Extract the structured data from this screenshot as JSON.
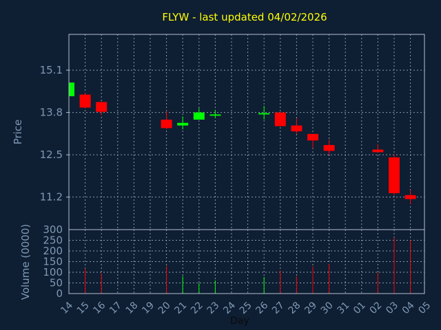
{
  "colors": {
    "background": "#0e1e33",
    "title": "#ffff00",
    "axis_text": "#7f9ab4",
    "grid": "#8d9dad",
    "frame": "#b6c2cf",
    "up": "#00ff00",
    "down": "#ff0000"
  },
  "chart_data": [
    {
      "type": "candlestick",
      "title": "FLYW - last updated 04/02/2026",
      "ylabel": "Price",
      "xlabel": "",
      "ylim": [
        10.2,
        16.2
      ],
      "yticks": [
        15.1,
        13.8,
        12.5,
        11.2
      ],
      "ytick_labels": [
        "15.1",
        "13.8",
        "12.5",
        "11.2"
      ],
      "grid": true,
      "x_day_labels": [
        "14",
        "15",
        "16",
        "17",
        "18",
        "19",
        "20",
        "21",
        "22",
        "23",
        "24",
        "25",
        "26",
        "27",
        "28",
        "29",
        "30",
        "31",
        "01",
        "02",
        "03",
        "04",
        "05"
      ],
      "candles": [
        {
          "day": 0,
          "open": 14.3,
          "close": 14.72,
          "high": 14.72,
          "low": 14.3
        },
        {
          "day": 1,
          "open": 14.35,
          "close": 13.95,
          "high": 14.4,
          "low": 13.92
        },
        {
          "day": 2,
          "open": 14.12,
          "close": 13.82,
          "high": 14.14,
          "low": 13.72
        },
        {
          "day": 6,
          "open": 13.58,
          "close": 13.32,
          "high": 13.84,
          "low": 13.28
        },
        {
          "day": 7,
          "open": 13.4,
          "close": 13.48,
          "high": 13.68,
          "low": 13.28
        },
        {
          "day": 8,
          "open": 13.58,
          "close": 13.8,
          "high": 13.94,
          "low": 13.58
        },
        {
          "day": 9,
          "open": 13.7,
          "close": 13.74,
          "high": 13.88,
          "low": 13.62
        },
        {
          "day": 12,
          "open": 13.74,
          "close": 13.78,
          "high": 14.0,
          "low": 13.58
        },
        {
          "day": 13,
          "open": 13.8,
          "close": 13.38,
          "high": 13.8,
          "low": 13.38
        },
        {
          "day": 14,
          "open": 13.4,
          "close": 13.22,
          "high": 13.62,
          "low": 13.14
        },
        {
          "day": 15,
          "open": 13.14,
          "close": 12.94,
          "high": 13.14,
          "low": 12.7
        },
        {
          "day": 16,
          "open": 12.8,
          "close": 12.62,
          "high": 12.96,
          "low": 12.5
        },
        {
          "day": 19,
          "open": 12.66,
          "close": 12.58,
          "high": 12.82,
          "low": 12.56
        },
        {
          "day": 20,
          "open": 12.42,
          "close": 11.32,
          "high": 12.52,
          "low": 11.26
        },
        {
          "day": 21,
          "open": 11.26,
          "close": 11.14,
          "high": 11.42,
          "low": 10.98
        }
      ]
    },
    {
      "type": "bar",
      "ylabel": "Volume (0000)",
      "xlabel": "Day",
      "ylim": [
        0,
        300
      ],
      "yticks": [
        0,
        50,
        100,
        150,
        200,
        250,
        300
      ],
      "ytick_labels": [
        "0",
        "50",
        "100",
        "150",
        "200",
        "250",
        "300"
      ],
      "grid": true,
      "bars": [
        {
          "day": 1,
          "value": 118,
          "color": "down"
        },
        {
          "day": 2,
          "value": 95,
          "color": "down"
        },
        {
          "day": 6,
          "value": 130,
          "color": "down"
        },
        {
          "day": 7,
          "value": 82,
          "color": "up"
        },
        {
          "day": 8,
          "value": 50,
          "color": "up"
        },
        {
          "day": 9,
          "value": 62,
          "color": "up"
        },
        {
          "day": 12,
          "value": 78,
          "color": "up"
        },
        {
          "day": 13,
          "value": 108,
          "color": "down"
        },
        {
          "day": 14,
          "value": 80,
          "color": "down"
        },
        {
          "day": 15,
          "value": 128,
          "color": "down"
        },
        {
          "day": 16,
          "value": 140,
          "color": "down"
        },
        {
          "day": 19,
          "value": 98,
          "color": "down"
        },
        {
          "day": 20,
          "value": 262,
          "color": "down"
        },
        {
          "day": 21,
          "value": 250,
          "color": "down"
        }
      ]
    }
  ]
}
